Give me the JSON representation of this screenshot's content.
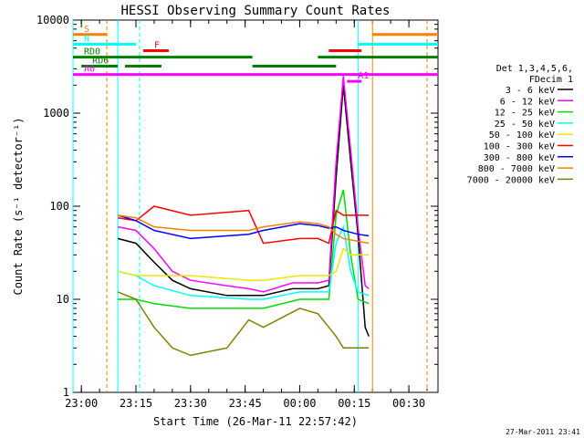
{
  "chart_data": {
    "type": "line",
    "title": "HESSI Observing Summary Count Rates",
    "xlabel": "Start Time (26-Mar-11 22:57:42)",
    "ylabel": "Count Rate (s⁻¹ detector⁻¹)",
    "ylog": true,
    "xlim": [
      "22:57:42",
      "00:38:00"
    ],
    "ylim": [
      1,
      10000
    ],
    "x_ticks": [
      "23:00",
      "23:15",
      "23:30",
      "23:45",
      "00:00",
      "00:15",
      "00:30"
    ],
    "y_ticks": [
      "1",
      "10",
      "100",
      "1000",
      "10000"
    ],
    "timestamp": "27-Mar-2011 23:41",
    "legend": {
      "header": [
        "Det 1,3,4,5,6,",
        "FDecim 1"
      ],
      "position": "right",
      "entries": [
        {
          "label": "3 - 6 keV",
          "color": "#000000"
        },
        {
          "label": "6 - 12 keV",
          "color": "#ff00ff"
        },
        {
          "label": "12 - 25 keV",
          "color": "#00dd00"
        },
        {
          "label": "25 - 50 keV",
          "color": "#00ffff"
        },
        {
          "label": "50 - 100 keV",
          "color": "#e8e800"
        },
        {
          "label": "100 - 300 keV",
          "color": "#ff0000"
        },
        {
          "label": "300 - 800 keV",
          "color": "#0000ff"
        },
        {
          "label": "800 - 7000 keV",
          "color": "#ff8000"
        },
        {
          "label": "7000 - 20000 keV",
          "color": "#808000"
        }
      ]
    },
    "series": [
      {
        "name": "3 - 6 keV",
        "color": "#000000",
        "points": [
          [
            "23:10",
            45
          ],
          [
            "23:15",
            40
          ],
          [
            "23:20",
            25
          ],
          [
            "23:25",
            16
          ],
          [
            "23:30",
            13
          ],
          [
            "23:40",
            11
          ],
          [
            "23:46",
            11
          ],
          [
            "23:50",
            11
          ],
          [
            "23:58",
            13
          ],
          [
            "00:05",
            13
          ],
          [
            "00:08",
            14
          ],
          [
            "00:10",
            200
          ],
          [
            "00:12",
            2000
          ],
          [
            "00:14",
            300
          ],
          [
            "00:16",
            50
          ],
          [
            "00:18",
            5
          ],
          [
            "00:19",
            4
          ]
        ]
      },
      {
        "name": "6 - 12 keV",
        "color": "#ff00ff",
        "points": [
          [
            "23:10",
            60
          ],
          [
            "23:15",
            55
          ],
          [
            "23:20",
            35
          ],
          [
            "23:25",
            20
          ],
          [
            "23:30",
            16
          ],
          [
            "23:40",
            14
          ],
          [
            "23:46",
            13
          ],
          [
            "23:50",
            12
          ],
          [
            "23:58",
            15
          ],
          [
            "00:05",
            15
          ],
          [
            "00:08",
            16
          ],
          [
            "00:10",
            300
          ],
          [
            "00:12",
            2500
          ],
          [
            "00:14",
            400
          ],
          [
            "00:16",
            60
          ],
          [
            "00:18",
            14
          ],
          [
            "00:19",
            13
          ]
        ]
      },
      {
        "name": "12 - 25 keV",
        "color": "#00dd00",
        "points": [
          [
            "23:10",
            10
          ],
          [
            "23:15",
            10
          ],
          [
            "23:20",
            9
          ],
          [
            "23:30",
            8
          ],
          [
            "23:46",
            8
          ],
          [
            "23:50",
            8
          ],
          [
            "00:00",
            10
          ],
          [
            "00:05",
            10
          ],
          [
            "00:08",
            10
          ],
          [
            "00:10",
            80
          ],
          [
            "00:12",
            150
          ],
          [
            "00:14",
            30
          ],
          [
            "00:16",
            10
          ],
          [
            "00:19",
            9
          ]
        ]
      },
      {
        "name": "25 - 50 keV",
        "color": "#00ffff",
        "points": [
          [
            "23:10",
            20
          ],
          [
            "23:15",
            18
          ],
          [
            "23:20",
            14
          ],
          [
            "23:30",
            11
          ],
          [
            "23:46",
            10
          ],
          [
            "23:50",
            10
          ],
          [
            "00:00",
            12
          ],
          [
            "00:05",
            12
          ],
          [
            "00:08",
            12
          ],
          [
            "00:10",
            40
          ],
          [
            "00:12",
            60
          ],
          [
            "00:14",
            20
          ],
          [
            "00:16",
            12
          ],
          [
            "00:19",
            11
          ]
        ]
      },
      {
        "name": "50 - 100 keV",
        "color": "#e8e800",
        "points": [
          [
            "23:10",
            20
          ],
          [
            "23:15",
            18
          ],
          [
            "23:20",
            18
          ],
          [
            "23:30",
            18
          ],
          [
            "23:46",
            16
          ],
          [
            "23:50",
            16
          ],
          [
            "00:00",
            18
          ],
          [
            "00:05",
            18
          ],
          [
            "00:08",
            18
          ],
          [
            "00:10",
            20
          ],
          [
            "00:12",
            35
          ],
          [
            "00:14",
            30
          ],
          [
            "00:16",
            30
          ],
          [
            "00:19",
            30
          ]
        ]
      },
      {
        "name": "100 - 300 keV",
        "color": "#ff0000",
        "points": [
          [
            "23:10",
            75
          ],
          [
            "23:15",
            70
          ],
          [
            "23:20",
            100
          ],
          [
            "23:30",
            80
          ],
          [
            "23:46",
            90
          ],
          [
            "23:50",
            40
          ],
          [
            "00:00",
            45
          ],
          [
            "00:05",
            45
          ],
          [
            "00:08",
            40
          ],
          [
            "00:10",
            90
          ],
          [
            "00:12",
            80
          ],
          [
            "00:16",
            80
          ],
          [
            "00:19",
            80
          ]
        ]
      },
      {
        "name": "300 - 800 keV",
        "color": "#0000ff",
        "points": [
          [
            "23:10",
            80
          ],
          [
            "23:15",
            70
          ],
          [
            "23:20",
            55
          ],
          [
            "23:30",
            45
          ],
          [
            "23:46",
            50
          ],
          [
            "23:50",
            55
          ],
          [
            "00:00",
            65
          ],
          [
            "00:05",
            62
          ],
          [
            "00:08",
            58
          ],
          [
            "00:10",
            60
          ],
          [
            "00:12",
            55
          ],
          [
            "00:16",
            50
          ],
          [
            "00:19",
            48
          ]
        ]
      },
      {
        "name": "800 - 7000 keV",
        "color": "#ff8000",
        "points": [
          [
            "23:10",
            80
          ],
          [
            "23:15",
            75
          ],
          [
            "23:20",
            60
          ],
          [
            "23:30",
            55
          ],
          [
            "23:46",
            55
          ],
          [
            "23:50",
            60
          ],
          [
            "00:00",
            68
          ],
          [
            "00:05",
            65
          ],
          [
            "00:08",
            60
          ],
          [
            "00:10",
            50
          ],
          [
            "00:12",
            45
          ],
          [
            "00:16",
            42
          ],
          [
            "00:19",
            40
          ]
        ]
      },
      {
        "name": "7000 - 20000 keV",
        "color": "#808000",
        "points": [
          [
            "23:10",
            12
          ],
          [
            "23:15",
            10
          ],
          [
            "23:20",
            5
          ],
          [
            "23:25",
            3
          ],
          [
            "23:30",
            2.5
          ],
          [
            "23:40",
            3
          ],
          [
            "23:46",
            6
          ],
          [
            "23:50",
            5
          ],
          [
            "00:00",
            8
          ],
          [
            "00:05",
            7
          ],
          [
            "00:08",
            5
          ],
          [
            "00:10",
            4
          ],
          [
            "00:12",
            3
          ],
          [
            "00:16",
            3
          ],
          [
            "00:19",
            3
          ]
        ]
      }
    ],
    "flags": [
      {
        "label": "S",
        "color": "#ff8000",
        "level": 7000,
        "segments": [
          [
            "22:57:42",
            "23:07"
          ],
          [
            "00:20",
            "00:38"
          ]
        ]
      },
      {
        "label": "N",
        "color": "#00ffff",
        "level": 5500,
        "segments": [
          [
            "22:57:42",
            "23:15"
          ],
          [
            "00:16",
            "00:38"
          ]
        ]
      },
      {
        "label": "F",
        "color": "#ff0000",
        "level": 4700,
        "segments": [
          [
            "23:17",
            "23:24"
          ],
          [
            "00:08",
            "00:17"
          ]
        ]
      },
      {
        "label": "RD0",
        "color": "#008000",
        "level": 4000,
        "segments": [
          [
            "22:57:42",
            "23:47"
          ],
          [
            "00:05",
            "00:38"
          ]
        ]
      },
      {
        "label": "RD6",
        "color": "#008000",
        "level": 3200,
        "segments": [
          [
            "23:00",
            "23:10"
          ],
          [
            "23:12",
            "23:22"
          ],
          [
            "23:47",
            "00:10"
          ]
        ]
      },
      {
        "label": "A0",
        "color": "#ff00ff",
        "level": 2600,
        "segments": [
          [
            "22:57:42",
            "00:38"
          ]
        ]
      },
      {
        "label": "A1",
        "color": "#ff00ff",
        "level": 2200,
        "segments": [
          [
            "00:13",
            "00:17"
          ]
        ]
      }
    ],
    "vlines": [
      {
        "time": "22:57:42",
        "color": "#00ffff",
        "style": "solid"
      },
      {
        "time": "23:07",
        "color": "#ff8000",
        "style": "dashed"
      },
      {
        "time": "23:10",
        "color": "#00ffff",
        "style": "solid"
      },
      {
        "time": "23:16",
        "color": "#00ffff",
        "style": "dashed"
      },
      {
        "time": "00:16",
        "color": "#00ffff",
        "style": "solid"
      },
      {
        "time": "00:20",
        "color": "#ff8000",
        "style": "solid"
      },
      {
        "time": "00:35",
        "color": "#00ffff",
        "style": "dashed"
      },
      {
        "time": "00:35",
        "color": "#ff8000",
        "style": "dashed"
      }
    ]
  }
}
